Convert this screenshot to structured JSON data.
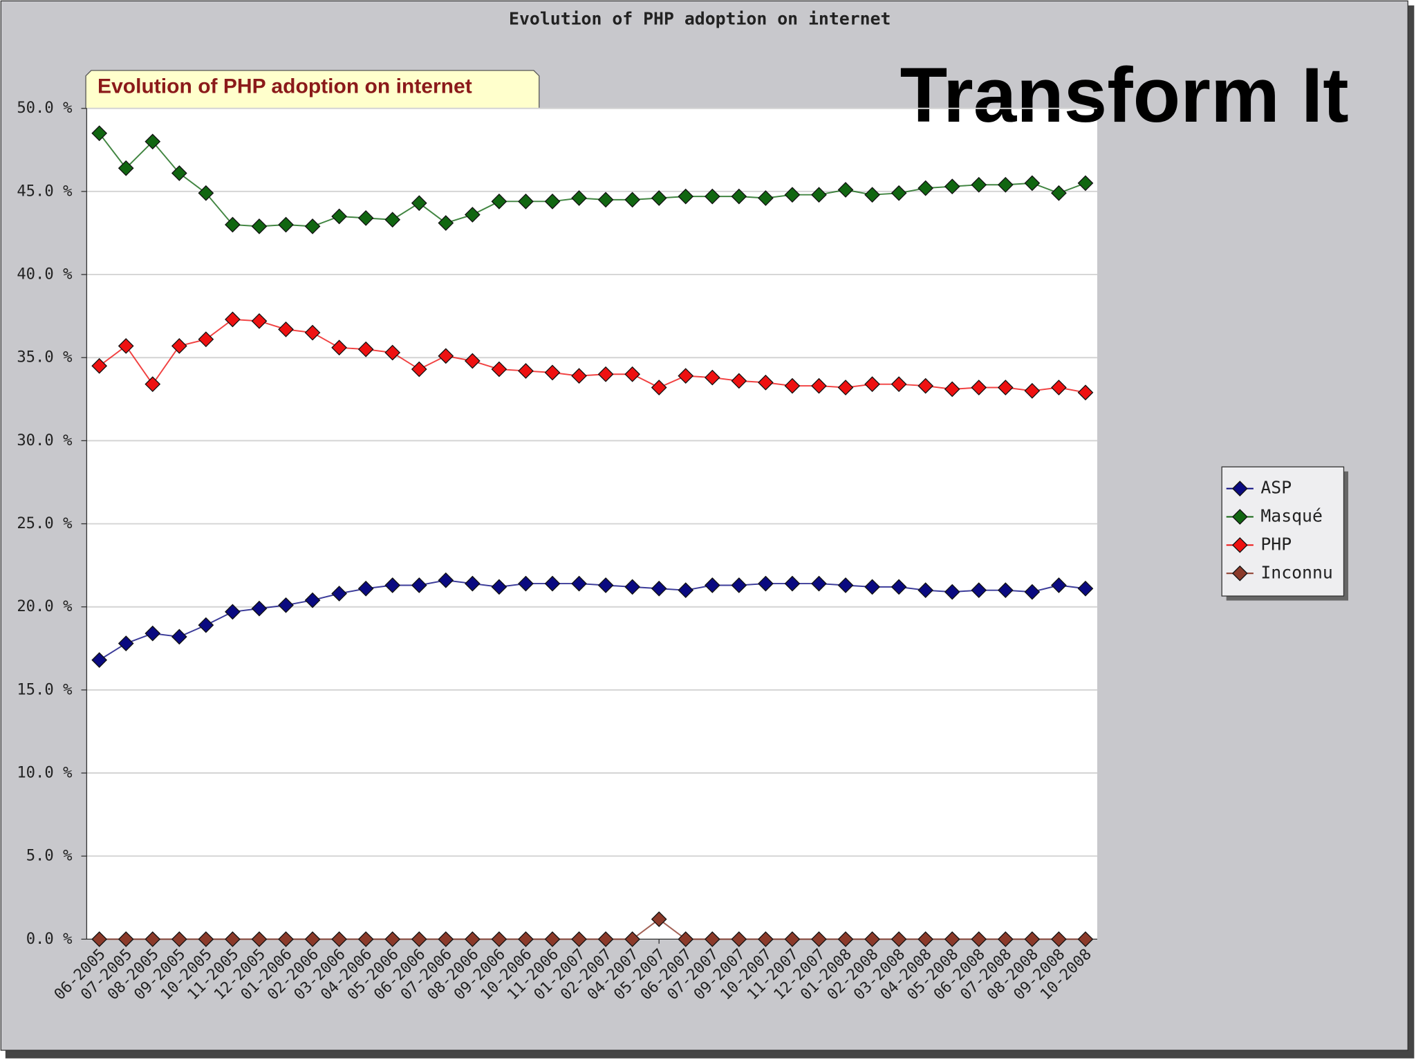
{
  "chart_data": {
    "type": "line",
    "title": "Evolution of PHP adoption on internet",
    "subtitle": "Evolution of PHP adoption on internet",
    "annotation": "Transform It",
    "categories": [
      "06-2005",
      "07-2005",
      "08-2005",
      "09-2005",
      "10-2005",
      "11-2005",
      "12-2005",
      "01-2006",
      "02-2006",
      "03-2006",
      "04-2006",
      "05-2006",
      "06-2006",
      "07-2006",
      "08-2006",
      "09-2006",
      "10-2006",
      "11-2006",
      "01-2007",
      "02-2007",
      "04-2007",
      "05-2007",
      "06-2007",
      "07-2007",
      "09-2007",
      "10-2007",
      "11-2007",
      "12-2007",
      "01-2008",
      "02-2008",
      "03-2008",
      "04-2008",
      "05-2008",
      "06-2008",
      "07-2008",
      "08-2008",
      "09-2008",
      "10-2008"
    ],
    "series": [
      {
        "name": "ASP",
        "color": "#0a0a80",
        "values": [
          16.8,
          17.8,
          18.4,
          18.2,
          18.9,
          19.7,
          19.9,
          20.1,
          20.4,
          20.8,
          21.1,
          21.3,
          21.3,
          21.6,
          21.4,
          21.2,
          21.4,
          21.4,
          21.4,
          21.3,
          21.2,
          21.1,
          21.0,
          21.3,
          21.3,
          21.4,
          21.4,
          21.4,
          21.3,
          21.2,
          21.2,
          21.0,
          20.9,
          21.0,
          21.0,
          20.9,
          21.3,
          21.1
        ]
      },
      {
        "name": "Masqué",
        "color": "#116611",
        "values": [
          48.5,
          46.4,
          48.0,
          46.1,
          44.9,
          43.0,
          42.9,
          43.0,
          42.9,
          43.5,
          43.4,
          43.3,
          44.3,
          43.1,
          43.6,
          44.4,
          44.4,
          44.4,
          44.6,
          44.5,
          44.5,
          44.6,
          44.7,
          44.7,
          44.7,
          44.6,
          44.8,
          44.8,
          45.1,
          44.8,
          44.9,
          45.2,
          45.3,
          45.4,
          45.4,
          45.5,
          44.9,
          45.5
        ]
      },
      {
        "name": "PHP",
        "color": "#ee1111",
        "values": [
          34.5,
          35.7,
          33.4,
          35.7,
          36.1,
          37.3,
          37.2,
          36.7,
          36.5,
          35.6,
          35.5,
          35.3,
          34.3,
          35.1,
          34.8,
          34.3,
          34.2,
          34.1,
          33.9,
          34.0,
          34.0,
          33.2,
          33.9,
          33.8,
          33.6,
          33.5,
          33.3,
          33.3,
          33.2,
          33.4,
          33.4,
          33.3,
          33.1,
          33.2,
          33.2,
          33.0,
          33.2,
          32.9
        ]
      },
      {
        "name": "Inconnu",
        "color": "#8b3a2a",
        "values": [
          0,
          0,
          0,
          0,
          0,
          0,
          0,
          0,
          0,
          0,
          0,
          0,
          0,
          0,
          0,
          0,
          0,
          0,
          0,
          0,
          0,
          1.2,
          0,
          0,
          0,
          0,
          0,
          0,
          0,
          0,
          0,
          0,
          0,
          0,
          0,
          0,
          0,
          0
        ]
      }
    ],
    "ylim": [
      0,
      50
    ],
    "yticks": [
      {
        "value": 0,
        "label": "0.0 %"
      },
      {
        "value": 5,
        "label": "5.0 %"
      },
      {
        "value": 10,
        "label": "10.0 %"
      },
      {
        "value": 15,
        "label": "15.0 %"
      },
      {
        "value": 20,
        "label": "20.0 %"
      },
      {
        "value": 25,
        "label": "25.0 %"
      },
      {
        "value": 30,
        "label": "30.0 %"
      },
      {
        "value": 35,
        "label": "35.0 %"
      },
      {
        "value": 40,
        "label": "40.0 %"
      },
      {
        "value": 45,
        "label": "45.0 %"
      },
      {
        "value": 50,
        "label": "50.0 %"
      }
    ],
    "grid": true,
    "legend": "right"
  }
}
